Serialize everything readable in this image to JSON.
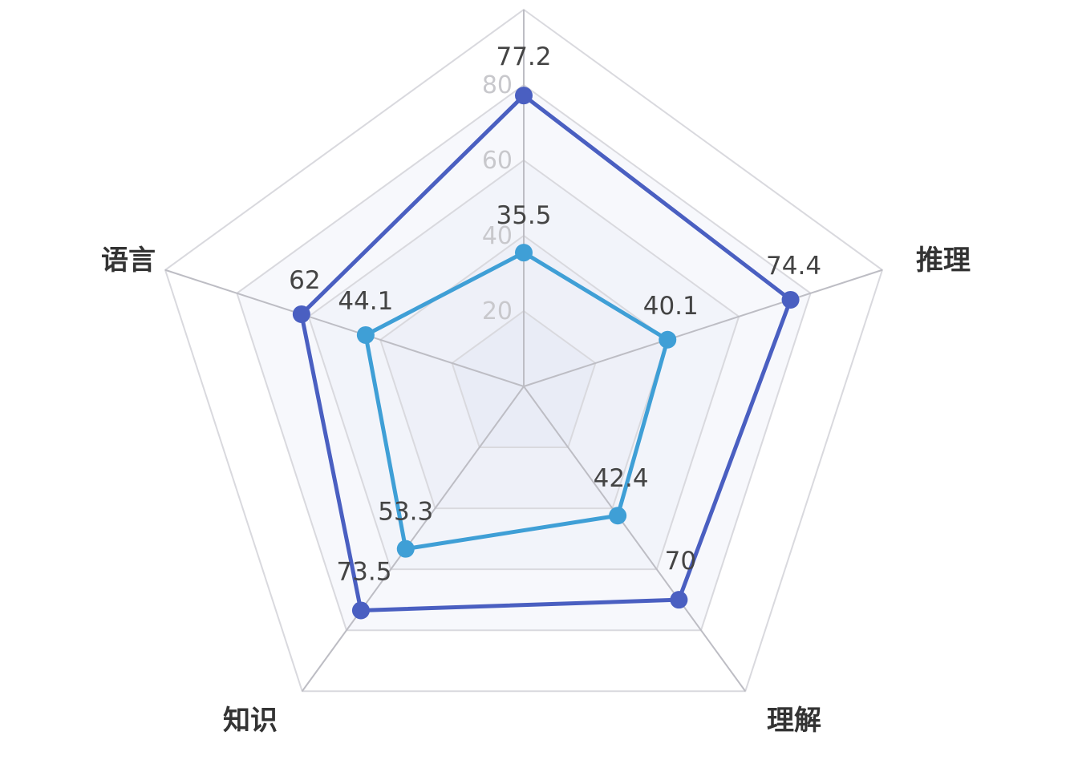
{
  "chart_data": {
    "type": "radar",
    "indicators": [
      "语言",
      "推理",
      "理解",
      "知识"
    ],
    "axis_label_top": "",
    "max": 100,
    "ticks": [
      "20",
      "40",
      "60",
      "80"
    ],
    "tick_values": [
      20,
      40,
      60,
      80
    ],
    "series": [
      {
        "values": [
          77.2,
          62,
          74.4,
          70,
          73.5
        ],
        "labels": [
          "77.2",
          "62",
          "74.4",
          "70",
          "73.5"
        ],
        "color": "#4a5fc1"
      },
      {
        "values": [
          35.5,
          44.1,
          40.1,
          42.4,
          53.3
        ],
        "labels": [
          "35.5",
          "44.1",
          "40.1",
          "42.4",
          "53.3"
        ],
        "color": "#3f9fd6"
      }
    ],
    "axis_order": [
      "top",
      "语言",
      "推理",
      "理解",
      "知识"
    ],
    "grid": true,
    "legend": "none"
  }
}
